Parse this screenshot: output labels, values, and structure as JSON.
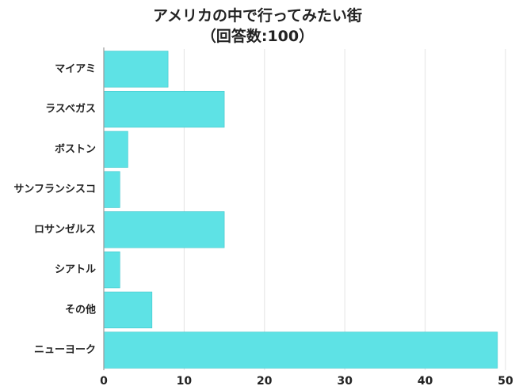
{
  "chart_data": {
    "type": "bar",
    "orientation": "horizontal",
    "title": "アメリカの中で行ってみたい街",
    "subtitle": "（回答数:100）",
    "categories": [
      "マイアミ",
      "ラスベガス",
      "ボストン",
      "サンフランシスコ",
      "ロサンゼルス",
      "シアトル",
      "その他",
      "ニューヨーク"
    ],
    "values": [
      8,
      15,
      3,
      2,
      15,
      2,
      6,
      49
    ],
    "xlim": [
      0,
      50
    ],
    "xticks": [
      0,
      10,
      20,
      30,
      40,
      50
    ],
    "grid": true,
    "bar_color": "#5ee2e5",
    "bar_edge_color": "#40c7cc",
    "grid_color": "#e3e3e3",
    "axis_color": "#9a9a9a"
  }
}
